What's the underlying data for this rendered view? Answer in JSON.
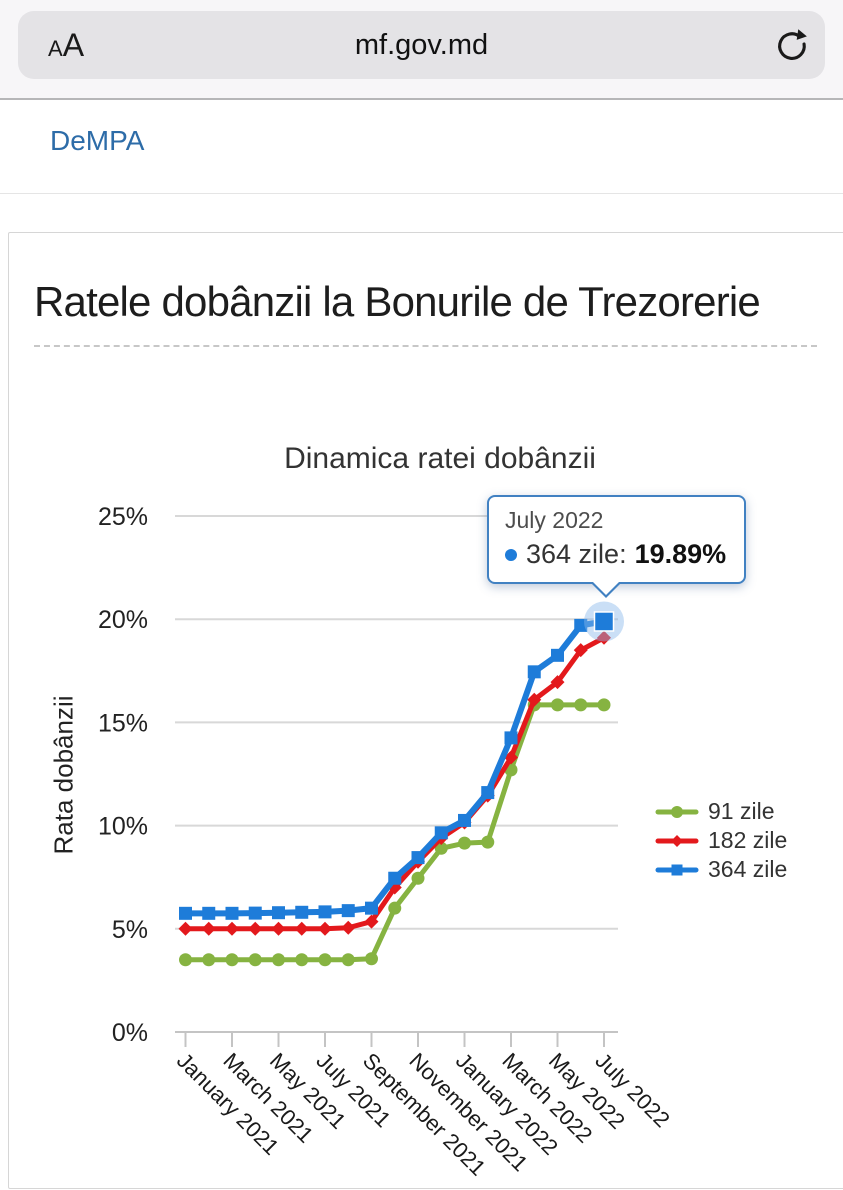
{
  "browser": {
    "reader_button": "AA",
    "url": "mf.gov.md"
  },
  "breadcrumb": {
    "link": "DeMPA"
  },
  "page": {
    "title": "Ratele dobânzii la Bonurile de Trezorerie"
  },
  "chart_data": {
    "type": "line",
    "title": "Dinamica ratei dobânzii",
    "xlabel": "",
    "ylabel": "Rata dobânzii",
    "ylim": [
      0,
      25
    ],
    "grid": "horizontal",
    "legend_position": "right",
    "y_ticks": [
      0,
      5,
      10,
      15,
      20,
      25
    ],
    "y_tick_labels": [
      "0%",
      "5%",
      "10%",
      "15%",
      "20%",
      "25%"
    ],
    "x": [
      "January 2021",
      "February 2021",
      "March 2021",
      "April 2021",
      "May 2021",
      "June 2021",
      "July 2021",
      "August 2021",
      "September 2021",
      "October 2021",
      "November 2021",
      "December 2021",
      "January 2022",
      "February 2022",
      "March 2022",
      "April 2022",
      "May 2022",
      "June 2022",
      "July 2022"
    ],
    "x_tick_labels": [
      "January 2021",
      "March 2021",
      "May 2021",
      "July 2021",
      "September 2021",
      "November 2021",
      "January 2022",
      "March 2022",
      "May 2022",
      "July 2022"
    ],
    "series": [
      {
        "name": "91 zile",
        "color": "#86B341",
        "marker": "circle",
        "values": [
          3.5,
          3.5,
          3.5,
          3.5,
          3.5,
          3.5,
          3.5,
          3.5,
          3.55,
          6.0,
          7.45,
          8.9,
          9.15,
          9.2,
          12.7,
          15.85,
          15.85,
          15.85,
          15.85
        ]
      },
      {
        "name": "182 zile",
        "color": "#E3191C",
        "marker": "diamond",
        "values": [
          5.0,
          5.0,
          5.0,
          5.0,
          5.0,
          5.0,
          5.0,
          5.05,
          5.35,
          7.0,
          8.25,
          9.4,
          10.15,
          11.45,
          13.3,
          16.1,
          16.95,
          18.5,
          19.1
        ]
      },
      {
        "name": "364 zile",
        "color": "#1E7CD9",
        "marker": "square",
        "values": [
          5.75,
          5.75,
          5.75,
          5.76,
          5.78,
          5.8,
          5.82,
          5.88,
          6.0,
          7.45,
          8.45,
          9.65,
          10.25,
          11.6,
          14.25,
          17.45,
          18.25,
          19.7,
          19.89
        ]
      }
    ],
    "tooltip": {
      "title": "July 2022",
      "series": "364 zile",
      "label": "364 zile:",
      "value": "19.89%",
      "point_index": 18
    }
  }
}
